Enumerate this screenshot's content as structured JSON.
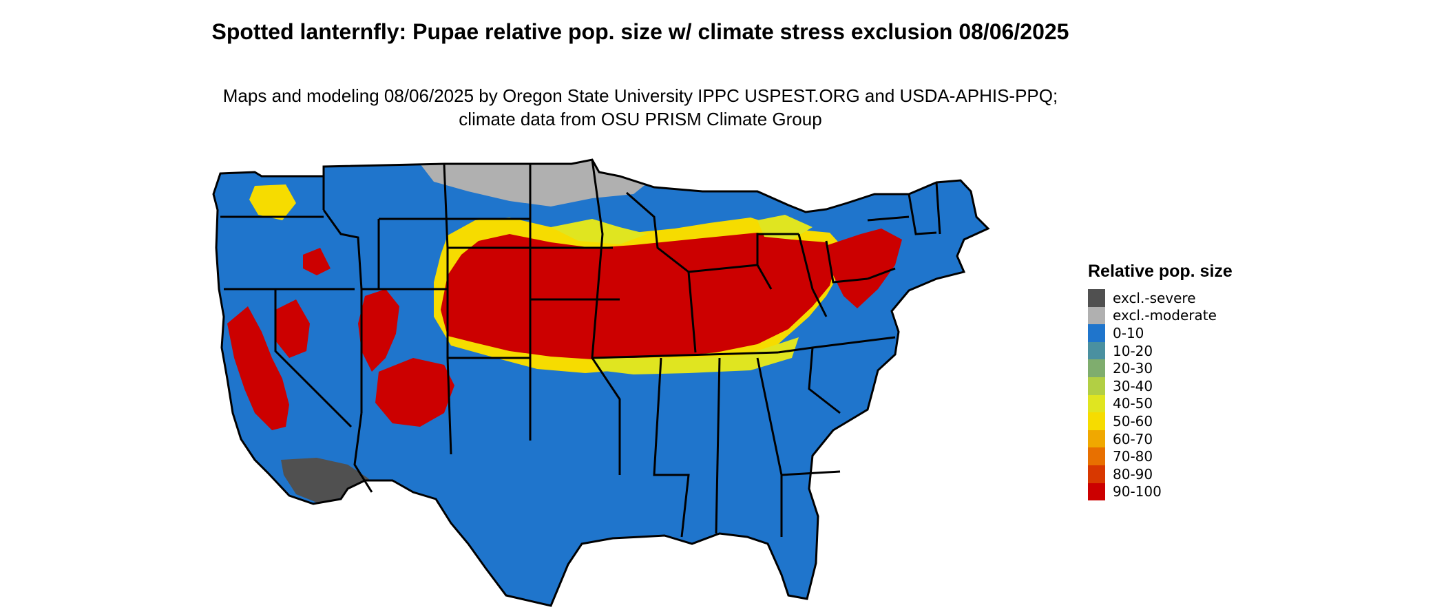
{
  "title": "Spotted lanternfly: Pupae relative pop. size w/ climate stress exclusion 08/06/2025",
  "subtitle": "Maps and modeling 08/06/2025 by Oregon State University IPPC USPEST.ORG and USDA-APHIS-PPQ; climate data from OSU PRISM Climate Group",
  "legend": {
    "title": "Relative pop. size",
    "items": [
      {
        "label": "excl.-severe",
        "color": "#505050"
      },
      {
        "label": "excl.-moderate",
        "color": "#b0b0b0"
      },
      {
        "label": "0-10",
        "color": "#1f75cc"
      },
      {
        "label": "10-20",
        "color": "#4a90a0"
      },
      {
        "label": "20-30",
        "color": "#7fad6e"
      },
      {
        "label": "30-40",
        "color": "#b2cf44"
      },
      {
        "label": "40-50",
        "color": "#e0e520"
      },
      {
        "label": "50-60",
        "color": "#f6dc00"
      },
      {
        "label": "60-70",
        "color": "#f0a800"
      },
      {
        "label": "70-80",
        "color": "#e87000"
      },
      {
        "label": "80-90",
        "color": "#d83800"
      },
      {
        "label": "90-100",
        "color": "#cc0000"
      }
    ]
  },
  "map": {
    "region": "Contiguous United States",
    "base_color": "#1f75cc",
    "high_color": "#cc0000",
    "transition_color": "#f6dc00",
    "excl_severe_color": "#505050",
    "excl_moderate_color": "#b0b0b0"
  }
}
